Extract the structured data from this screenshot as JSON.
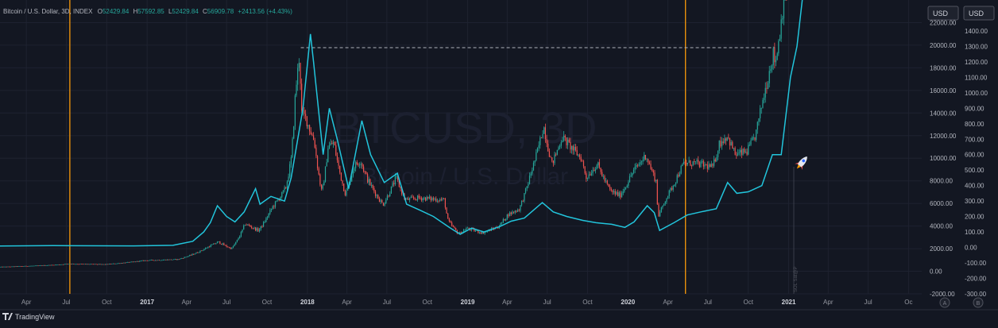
{
  "header": {
    "symbol": "Bitcoin / U.S. Dollar, 3D, INDEX",
    "open_label": "O",
    "open": "52429.84",
    "high_label": "H",
    "high": "57592.85",
    "low_label": "L",
    "low": "52429.84",
    "close_label": "C",
    "close": "56909.78",
    "change": "+2413.56 (+4.43%)"
  },
  "watermark": {
    "symbol": "BTCUSD, 3D",
    "name": "Bitcoin / U.S. Dollar"
  },
  "footer": {
    "brand": "TradingView"
  },
  "scale_buttons": {
    "right_currency": "USD",
    "far_currency": "USD",
    "auto": "A",
    "log": "B"
  },
  "vertical_label": "SOL Sat@P",
  "colors": {
    "background": "#131722",
    "up": "#26a69a",
    "down": "#ef5350",
    "overlay_line": "#22c5dc",
    "vertical_marker": "#e8900c",
    "gridline": "#1e2230",
    "text": "#b2b5be",
    "header_value": "#26a69a"
  },
  "chart_data": {
    "type": "line",
    "title": "",
    "x_range": [
      "2016-02-01",
      "2021-10-31"
    ],
    "x_ticks": [
      {
        "date": "2016-04-01",
        "label": "Apr",
        "bold": false
      },
      {
        "date": "2016-07-01",
        "label": "Jul",
        "bold": false
      },
      {
        "date": "2016-10-01",
        "label": "Oct",
        "bold": false
      },
      {
        "date": "2017-01-01",
        "label": "2017",
        "bold": true
      },
      {
        "date": "2017-04-01",
        "label": "Apr",
        "bold": false
      },
      {
        "date": "2017-07-01",
        "label": "Jul",
        "bold": false
      },
      {
        "date": "2017-10-01",
        "label": "Oct",
        "bold": false
      },
      {
        "date": "2018-01-01",
        "label": "2018",
        "bold": true
      },
      {
        "date": "2018-04-01",
        "label": "Apr",
        "bold": false
      },
      {
        "date": "2018-07-01",
        "label": "Jul",
        "bold": false
      },
      {
        "date": "2018-10-01",
        "label": "Oct",
        "bold": false
      },
      {
        "date": "2019-01-01",
        "label": "2019",
        "bold": true
      },
      {
        "date": "2019-04-01",
        "label": "Apr",
        "bold": false
      },
      {
        "date": "2019-07-01",
        "label": "Jul",
        "bold": false
      },
      {
        "date": "2019-10-01",
        "label": "Oct",
        "bold": false
      },
      {
        "date": "2020-01-01",
        "label": "2020",
        "bold": true
      },
      {
        "date": "2020-04-01",
        "label": "Apr",
        "bold": false
      },
      {
        "date": "2020-07-01",
        "label": "Jul",
        "bold": false
      },
      {
        "date": "2020-10-01",
        "label": "Oct",
        "bold": false
      },
      {
        "date": "2021-01-01",
        "label": "2021",
        "bold": true
      },
      {
        "date": "2021-04-01",
        "label": "Apr",
        "bold": false
      },
      {
        "date": "2021-07-01",
        "label": "Jul",
        "bold": false
      },
      {
        "date": "2021-10-01",
        "label": "Oc",
        "bold": false
      }
    ],
    "left_axis": {
      "unit": "USD",
      "range": [
        -2000,
        24000
      ],
      "ticks": [
        "22000.00",
        "20000.00",
        "18000.00",
        "16000.00",
        "14000.00",
        "12000.00",
        "10000.00",
        "8000.00",
        "6000.00",
        "4000.00",
        "2000.00",
        "0.00",
        "-2000.00"
      ]
    },
    "right_axis": {
      "unit": "USD",
      "range": [
        -300,
        1600
      ],
      "ticks": [
        "1500.00",
        "1400.00",
        "1300.00",
        "1200.00",
        "1100.00",
        "1000.00",
        "900.00",
        "800.00",
        "700.00",
        "600.00",
        "500.00",
        "400.00",
        "300.00",
        "200.00",
        "100.00",
        "0.00",
        "-100.00",
        "-200.00",
        "-300.00"
      ]
    },
    "vertical_markers": [
      "2016-07-09",
      "2020-05-11"
    ],
    "horizontal_level": {
      "value": 19783,
      "from": "2017-12-17",
      "to": "2020-12-01"
    },
    "candle_anchors": {
      "interval_days": 3,
      "points": [
        [
          "2016-02-01",
          380
        ],
        [
          "2016-06-01",
          550
        ],
        [
          "2016-07-10",
          660
        ],
        [
          "2016-10-01",
          610
        ],
        [
          "2017-01-01",
          960
        ],
        [
          "2017-03-15",
          1050
        ],
        [
          "2017-05-25",
          2200
        ],
        [
          "2017-06-15",
          2600
        ],
        [
          "2017-07-15",
          2000
        ],
        [
          "2017-08-15",
          4200
        ],
        [
          "2017-09-15",
          3600
        ],
        [
          "2017-10-15",
          5600
        ],
        [
          "2017-11-15",
          7300
        ],
        [
          "2017-11-28",
          9900
        ],
        [
          "2017-12-08",
          16000
        ],
        [
          "2017-12-17",
          19200
        ],
        [
          "2017-12-22",
          14000
        ],
        [
          "2018-01-01",
          13500
        ],
        [
          "2018-01-20",
          11500
        ],
        [
          "2018-02-06",
          6900
        ],
        [
          "2018-02-20",
          11000
        ],
        [
          "2018-03-05",
          11400
        ],
        [
          "2018-04-01",
          6800
        ],
        [
          "2018-04-20",
          9300
        ],
        [
          "2018-05-05",
          9800
        ],
        [
          "2018-05-20",
          8200
        ],
        [
          "2018-06-25",
          5900
        ],
        [
          "2018-07-25",
          8300
        ],
        [
          "2018-08-15",
          6300
        ],
        [
          "2018-09-15",
          6500
        ],
        [
          "2018-10-15",
          6400
        ],
        [
          "2018-11-12",
          6300
        ],
        [
          "2018-11-20",
          4500
        ],
        [
          "2018-12-15",
          3300
        ],
        [
          "2019-01-01",
          3800
        ],
        [
          "2019-02-07",
          3400
        ],
        [
          "2019-03-15",
          3950
        ],
        [
          "2019-04-05",
          5000
        ],
        [
          "2019-05-01",
          5500
        ],
        [
          "2019-05-28",
          8700
        ],
        [
          "2019-06-26",
          12900
        ],
        [
          "2019-07-15",
          9500
        ],
        [
          "2019-08-07",
          11900
        ],
        [
          "2019-09-20",
          10000
        ],
        [
          "2019-10-01",
          8300
        ],
        [
          "2019-10-26",
          9500
        ],
        [
          "2019-11-25",
          7100
        ],
        [
          "2019-12-17",
          6700
        ],
        [
          "2020-01-15",
          8800
        ],
        [
          "2020-02-14",
          10300
        ],
        [
          "2020-03-08",
          8000
        ],
        [
          "2020-03-13",
          4900
        ],
        [
          "2020-03-30",
          6400
        ],
        [
          "2020-04-30",
          8800
        ],
        [
          "2020-05-10",
          9500
        ],
        [
          "2020-06-01",
          9600
        ],
        [
          "2020-07-15",
          9200
        ],
        [
          "2020-07-30",
          11300
        ],
        [
          "2020-08-17",
          12000
        ],
        [
          "2020-09-05",
          10300
        ],
        [
          "2020-10-01",
          10600
        ],
        [
          "2020-10-20",
          12000
        ],
        [
          "2020-11-05",
          15000
        ],
        [
          "2020-11-25",
          18500
        ],
        [
          "2020-11-30",
          19200
        ],
        [
          "2020-12-05",
          18500
        ],
        [
          "2020-12-16",
          21500
        ],
        [
          "2020-12-22",
          23500
        ],
        [
          "2020-12-27",
          27000
        ]
      ]
    },
    "overlay_series": {
      "axis": "right",
      "points": [
        [
          "2016-02-01",
          9
        ],
        [
          "2016-06-01",
          12
        ],
        [
          "2016-07-09",
          11
        ],
        [
          "2016-12-01",
          10
        ],
        [
          "2017-03-01",
          14
        ],
        [
          "2017-04-15",
          40
        ],
        [
          "2017-05-10",
          100
        ],
        [
          "2017-05-25",
          160
        ],
        [
          "2017-06-10",
          270
        ],
        [
          "2017-07-01",
          200
        ],
        [
          "2017-07-20",
          165
        ],
        [
          "2017-08-10",
          230
        ],
        [
          "2017-09-05",
          380
        ],
        [
          "2017-09-15",
          280
        ],
        [
          "2017-10-10",
          330
        ],
        [
          "2017-11-10",
          300
        ],
        [
          "2017-11-25",
          450
        ],
        [
          "2017-12-10",
          700
        ],
        [
          "2017-12-22",
          900
        ],
        [
          "2018-01-08",
          1380
        ],
        [
          "2018-01-15",
          1200
        ],
        [
          "2018-02-06",
          600
        ],
        [
          "2018-02-20",
          900
        ],
        [
          "2018-03-10",
          700
        ],
        [
          "2018-04-05",
          380
        ],
        [
          "2018-05-05",
          820
        ],
        [
          "2018-05-25",
          600
        ],
        [
          "2018-06-25",
          420
        ],
        [
          "2018-07-25",
          480
        ],
        [
          "2018-08-15",
          280
        ],
        [
          "2018-09-15",
          240
        ],
        [
          "2018-10-15",
          200
        ],
        [
          "2018-11-20",
          130
        ],
        [
          "2018-12-15",
          85
        ],
        [
          "2019-01-10",
          125
        ],
        [
          "2019-02-07",
          100
        ],
        [
          "2019-03-15",
          135
        ],
        [
          "2019-04-10",
          170
        ],
        [
          "2019-05-10",
          190
        ],
        [
          "2019-06-20",
          290
        ],
        [
          "2019-07-15",
          230
        ],
        [
          "2019-08-15",
          200
        ],
        [
          "2019-09-20",
          175
        ],
        [
          "2019-10-20",
          160
        ],
        [
          "2019-11-25",
          150
        ],
        [
          "2019-12-25",
          130
        ],
        [
          "2020-01-15",
          165
        ],
        [
          "2020-02-14",
          270
        ],
        [
          "2020-03-01",
          225
        ],
        [
          "2020-03-13",
          110
        ],
        [
          "2020-04-15",
          160
        ],
        [
          "2020-05-15",
          210
        ],
        [
          "2020-06-15",
          230
        ],
        [
          "2020-07-20",
          250
        ],
        [
          "2020-08-15",
          420
        ],
        [
          "2020-09-05",
          350
        ],
        [
          "2020-10-01",
          360
        ],
        [
          "2020-11-01",
          400
        ],
        [
          "2020-11-25",
          600
        ],
        [
          "2020-12-15",
          600
        ],
        [
          "2021-01-05",
          1100
        ],
        [
          "2021-01-20",
          1300
        ],
        [
          "2021-02-05",
          1700
        ],
        [
          "2021-02-20",
          1900
        ]
      ]
    }
  }
}
